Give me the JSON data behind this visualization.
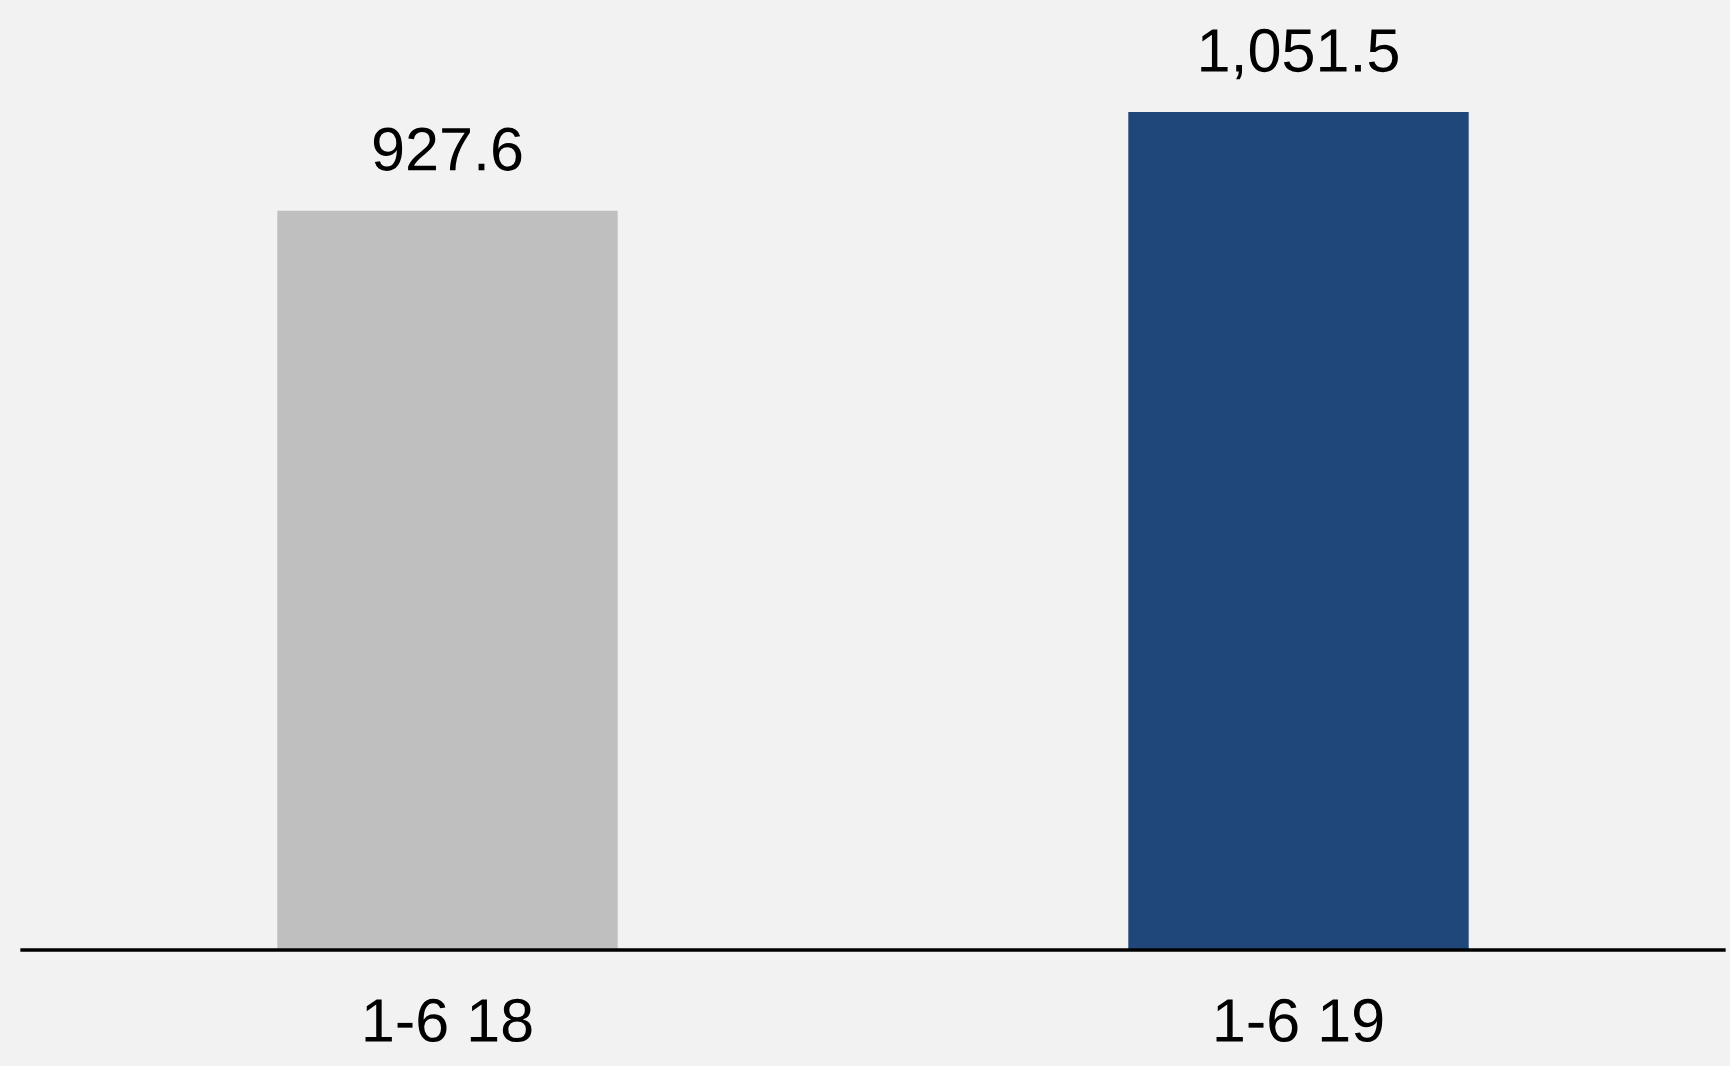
{
  "chart_data": {
    "type": "bar",
    "categories": [
      "1-6 18",
      "1-6 19"
    ],
    "values": [
      927.6,
      1051.5
    ],
    "colors": [
      "#bfbfbf",
      "#1f477a"
    ],
    "value_labels": [
      "927.6",
      "1,051.5"
    ],
    "tick_labels": "x"
  }
}
